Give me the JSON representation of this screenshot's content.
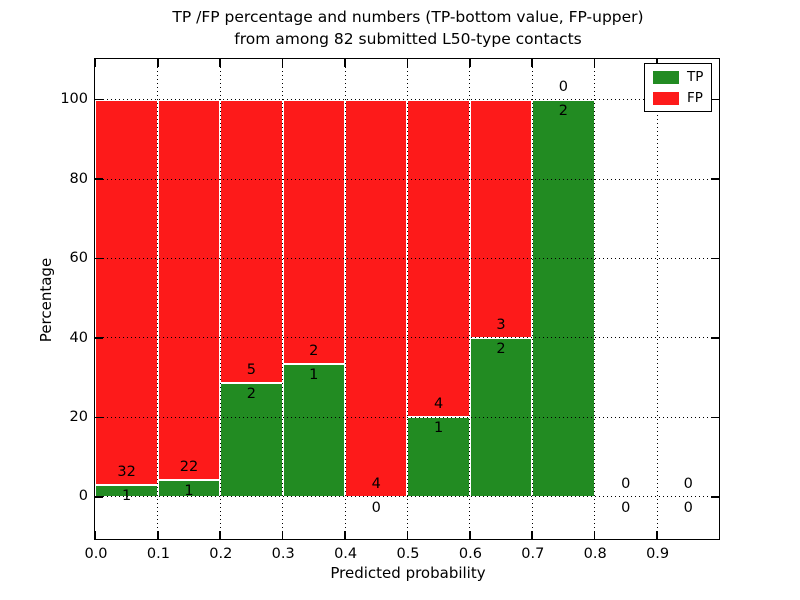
{
  "title": {
    "line1": "TP /FP percentage and numbers (TP-bottom value, FP-upper)",
    "line2": "from among 82 submitted L50-type contacts"
  },
  "legend": {
    "items": [
      {
        "label": "TP",
        "color": "#228b22"
      },
      {
        "label": "FP",
        "color": "#fd1a1a"
      }
    ],
    "position": "upper-right"
  },
  "chart_data": {
    "type": "bar",
    "stacked": true,
    "title": "TP /FP percentage and numbers (TP-bottom value, FP-upper) from among 82 submitted L50-type contacts",
    "xlabel": "Predicted probability",
    "ylabel": "Percentage",
    "total_submitted_contacts": 82,
    "bin_width": 0.1,
    "bins": [
      "0.0-0.1",
      "0.1-0.2",
      "0.2-0.3",
      "0.3-0.4",
      "0.4-0.5",
      "0.5-0.6",
      "0.6-0.7",
      "0.7-0.8",
      "0.8-0.9",
      "0.9-1.0"
    ],
    "series": [
      {
        "name": "TP",
        "color": "#228b22",
        "counts": [
          1,
          1,
          2,
          1,
          0,
          1,
          2,
          2,
          0,
          0
        ],
        "pct": [
          3.03,
          4.35,
          28.57,
          33.33,
          0,
          20,
          40,
          100,
          0,
          0
        ]
      },
      {
        "name": "FP",
        "color": "#fd1a1a",
        "counts": [
          32,
          22,
          5,
          2,
          4,
          4,
          3,
          0,
          0,
          0
        ],
        "pct": [
          96.97,
          95.65,
          71.43,
          66.67,
          100,
          80,
          60,
          0,
          0,
          0
        ]
      }
    ],
    "xlim": [
      0.0,
      1.0
    ],
    "ylim": [
      -10.7,
      110.1
    ],
    "xticks": [
      0.0,
      0.1,
      0.2,
      0.3,
      0.4,
      0.5,
      0.6,
      0.7,
      0.8,
      0.9
    ],
    "yticks": [
      0,
      20,
      40,
      60,
      80,
      100
    ],
    "grid": "dotted",
    "legend_position": "upper right"
  }
}
